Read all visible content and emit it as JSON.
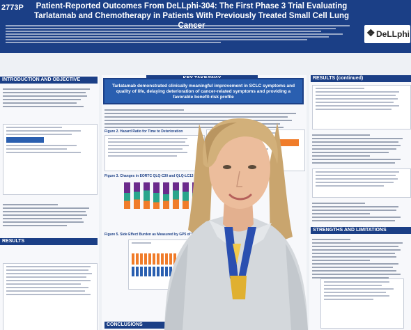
{
  "poster": {
    "id": "2773P",
    "title_line1": "Patient-Reported Outcomes From DeLLphi-304: The First Phase 3 Trial Evaluating",
    "title_line2": "Tarlatamab and Chemotherapy in Patients With Previously Treated Small Cell Lung Cancer",
    "logo_text": "DeLLphi",
    "intro_heading": "INTRODUCTION AND OBJECTIVE",
    "takeaway_heading": "KEY TAKEAWAY",
    "takeaway_text": "Tarlatamab demonstrated clinically meaningful improvement in SCLC symptoms and quality of life, delaying deterioration of cancer-related symptoms and providing a favorable benefit-risk profile",
    "results_heading": "RESULTS (continued)",
    "results_heading_left": "RESULTS",
    "strengths_heading": "STRENGTHS AND LIMITATIONS",
    "conclusions_heading": "CONCLUSIONS",
    "figure2_title": "Figure 2. Hazard Ratio for Time to Deterioration",
    "figure3_title": "Figure 3. Changes in EORTC QLQ-C30 and QLQ-LC13 Scales After 18 Weeks",
    "figure5_title": "Figure 5. Side Effect Burden as Measured by GP5 of FACT-GP"
  },
  "colors": {
    "banner": "#1b3f86",
    "takeaway_box": "#2a5fb0",
    "chart_orange": "#f07c2a",
    "chart_teal": "#2aa58c",
    "chart_purple": "#6b2a8c"
  }
}
